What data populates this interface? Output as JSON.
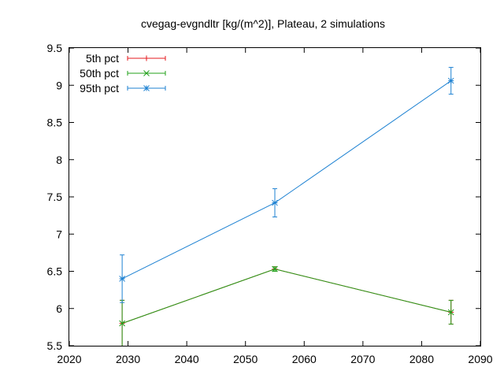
{
  "chart_data": {
    "type": "line",
    "title": "cvegag-evgndltr [kg/(m^2)], Plateau, 2 simulations",
    "xlabel": "",
    "ylabel": "",
    "xlim": [
      2020,
      2090
    ],
    "ylim": [
      5.5,
      9.5
    ],
    "x_ticks": [
      "2020",
      "2030",
      "2040",
      "2050",
      "2060",
      "2070",
      "2080",
      "2090"
    ],
    "y_ticks": [
      "5.5",
      "6",
      "6.5",
      "7",
      "7.5",
      "8",
      "8.5",
      "9",
      "9.5"
    ],
    "grid": false,
    "legend_position": "top-left",
    "series": [
      {
        "name": "5th pct",
        "color": "#e41a1c",
        "marker": "plus",
        "x": [
          2029,
          2055,
          2085
        ],
        "y": [
          5.8,
          6.53,
          5.95
        ],
        "err": [
          0.31,
          0.03,
          0.16
        ]
      },
      {
        "name": "50th pct",
        "color": "#21a01a",
        "marker": "cross",
        "x": [
          2029,
          2055,
          2085
        ],
        "y": [
          5.8,
          6.53,
          5.95
        ],
        "err": [
          0.31,
          0.03,
          0.16
        ]
      },
      {
        "name": "95th pct",
        "color": "#1e82d2",
        "marker": "star",
        "x": [
          2029,
          2055,
          2085
        ],
        "y": [
          6.4,
          7.42,
          9.06
        ],
        "err": [
          0.32,
          0.19,
          0.18
        ]
      }
    ]
  }
}
